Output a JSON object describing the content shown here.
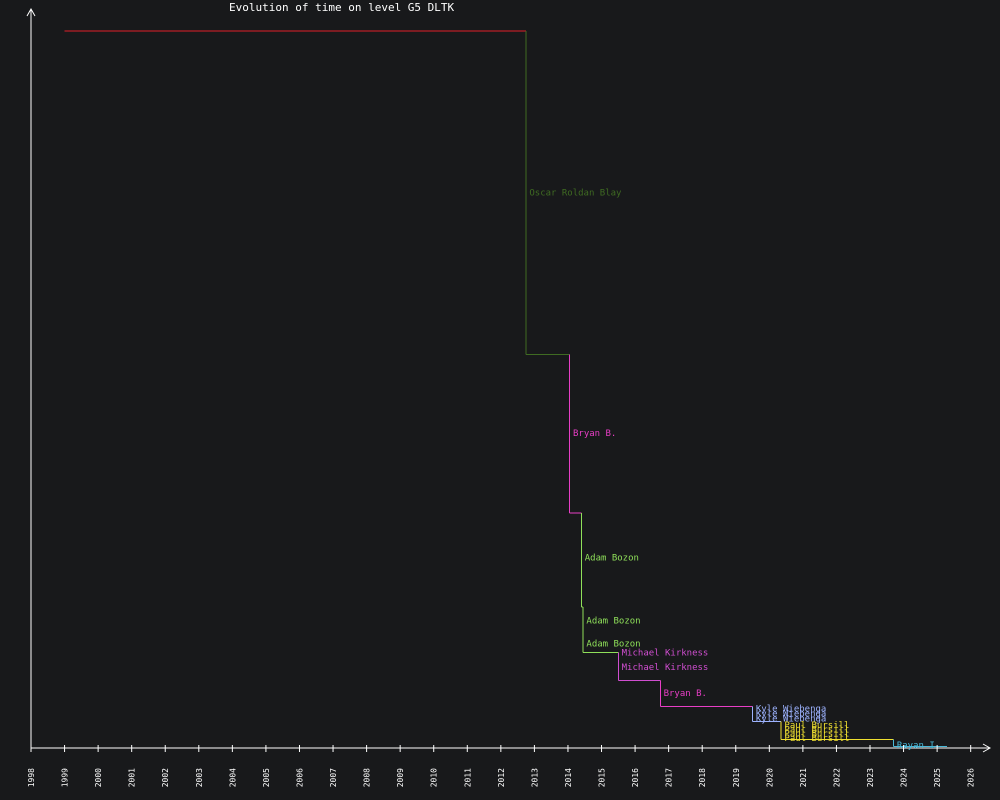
{
  "chart_data": {
    "type": "line",
    "title": "Evolution of time on level G5 DLTK",
    "xlabel": "",
    "ylabel": "",
    "x_tick_labels": [
      "1998",
      "1999",
      "2000",
      "2001",
      "2002",
      "2003",
      "2004",
      "2005",
      "2006",
      "2007",
      "2008",
      "2009",
      "2010",
      "2011",
      "2012",
      "2013",
      "2014",
      "2015",
      "2016",
      "2017",
      "2018",
      "2019",
      "2020",
      "2021",
      "2022",
      "2023",
      "2024",
      "2025",
      "2026"
    ],
    "xlim": [
      1998,
      2026.7
    ],
    "ylim": [
      0,
      100
    ],
    "grid": false,
    "colors": {
      "background": "#18191b",
      "axis": "#ffffff",
      "initial": "#e0202a",
      "oscar": "#3f6b22",
      "bryan": "#e83ec6",
      "adam": "#8fe05a",
      "michael": "#d04ed0",
      "kyle": "#9db3ff",
      "paul": "#f0e030",
      "rayan": "#48b8d8"
    },
    "segments": [
      {
        "x": [
          1999.0,
          2012.75
        ],
        "y": 100.0,
        "color": "initial"
      },
      {
        "x": [
          2012.75,
          2014.05
        ],
        "y": 54.9,
        "color": "oscar"
      },
      {
        "x": [
          2014.05,
          2014.4
        ],
        "y": 32.8,
        "color": "bryan"
      },
      {
        "x": [
          2014.4,
          2014.45
        ],
        "y": 19.7,
        "color": "adam"
      },
      {
        "x": [
          2014.45,
          2015.5
        ],
        "y": 13.3,
        "color": "adam"
      },
      {
        "x": [
          2015.5,
          2016.75
        ],
        "y": 9.4,
        "color": "michael"
      },
      {
        "x": [
          2016.75,
          2019.5
        ],
        "y": 5.8,
        "color": "bryan"
      },
      {
        "x": [
          2019.5,
          2020.35
        ],
        "y": 3.7,
        "color": "kyle"
      },
      {
        "x": [
          2020.35,
          2023.7
        ],
        "y": 1.2,
        "color": "paul"
      },
      {
        "x": [
          2023.7,
          2025.3
        ],
        "y": 0.2,
        "color": "rayan"
      }
    ],
    "drops": [
      {
        "x": 2012.75,
        "y_from": 100.0,
        "y_to": 54.9,
        "color": "oscar"
      },
      {
        "x": 2014.05,
        "y_from": 54.9,
        "y_to": 32.8,
        "color": "bryan"
      },
      {
        "x": 2014.4,
        "y_from": 32.8,
        "y_to": 19.7,
        "color": "adam"
      },
      {
        "x": 2014.45,
        "y_from": 19.7,
        "y_to": 13.3,
        "color": "adam"
      },
      {
        "x": 2015.5,
        "y_from": 13.3,
        "y_to": 9.4,
        "color": "michael"
      },
      {
        "x": 2016.75,
        "y_from": 9.4,
        "y_to": 5.8,
        "color": "bryan"
      },
      {
        "x": 2019.5,
        "y_from": 5.8,
        "y_to": 3.7,
        "color": "kyle"
      },
      {
        "x": 2020.35,
        "y_from": 3.7,
        "y_to": 1.2,
        "color": "paul"
      },
      {
        "x": 2023.7,
        "y_from": 1.2,
        "y_to": 0.2,
        "color": "rayan"
      }
    ],
    "annotations": [
      {
        "text": "Oscar Roldan Blay",
        "x": 2012.85,
        "y": 77.5,
        "color": "oscar"
      },
      {
        "text": "Bryan B.",
        "x": 2014.15,
        "y": 43.9,
        "color": "bryan"
      },
      {
        "text": "Adam Bozon",
        "x": 2014.5,
        "y": 26.6,
        "color": "adam"
      },
      {
        "text": "Adam Bozon",
        "x": 2014.55,
        "y": 17.8,
        "color": "adam"
      },
      {
        "text": "Adam Bozon",
        "x": 2014.55,
        "y": 14.6,
        "color": "adam"
      },
      {
        "text": "Michael Kirkness",
        "x": 2015.6,
        "y": 13.3,
        "color": "michael"
      },
      {
        "text": "Michael Kirkness",
        "x": 2015.6,
        "y": 11.3,
        "color": "michael"
      },
      {
        "text": "Bryan B.",
        "x": 2016.85,
        "y": 7.7,
        "color": "bryan"
      },
      {
        "text": "Kyle Wiebenga",
        "x": 2019.6,
        "y": 5.5,
        "color": "kyle"
      },
      {
        "text": "Kyle Wiebenga",
        "x": 2019.6,
        "y": 4.8,
        "color": "kyle"
      },
      {
        "text": "Kyle Wiebenga",
        "x": 2019.6,
        "y": 4.1,
        "color": "kyle"
      },
      {
        "text": "Paul Bursill",
        "x": 2020.45,
        "y": 3.2,
        "color": "paul"
      },
      {
        "text": "Paul Bursill",
        "x": 2020.45,
        "y": 2.6,
        "color": "paul"
      },
      {
        "text": "Paul Bursill",
        "x": 2020.45,
        "y": 2.0,
        "color": "paul"
      },
      {
        "text": "Paul Bursill",
        "x": 2020.45,
        "y": 1.4,
        "color": "paul"
      },
      {
        "text": "Rayan I.",
        "x": 2023.8,
        "y": 0.4,
        "color": "rayan"
      }
    ]
  }
}
